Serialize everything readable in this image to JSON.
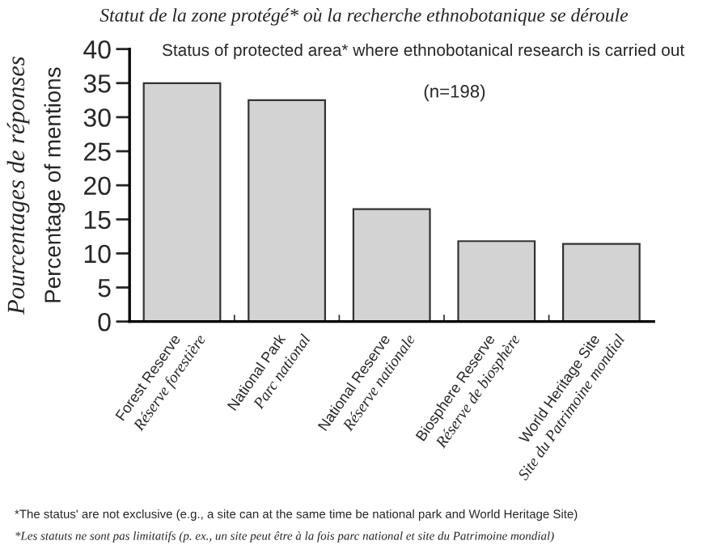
{
  "chart_data": {
    "type": "bar",
    "title": "Statut de la zone protégé* où la recherche ethnobotanique se déroule",
    "subtitle": "Status of protected area* where ethnobotanical research is carried out",
    "ylabel": "Pourcentages de réponses\nPercentage of mentions",
    "categories": [
      "Forest Reserve\nRéserve forestière",
      "National Park\nParc national",
      "National Reserve\nRéserve nationale",
      "Biosphere Reserve\nRéserve de biosphère",
      "World Heritage Site\nSite du Patrimoine mondial"
    ],
    "values": [
      35,
      32.5,
      16.5,
      11.8,
      11.4
    ],
    "color": "#d3d3d3",
    "ylim": [
      0,
      40
    ],
    "yticks": [
      0,
      5,
      10,
      15,
      20,
      25,
      30,
      35,
      40
    ],
    "grid": false,
    "legend": false,
    "annotations": [
      "(n=198)",
      "*The status' are not exclusive (e.g., a site can at the same time be national park and World Heritage Site)",
      "*Les statuts ne sont pas limitatifs (p. ex., un site peut être à la fois parc national et site du Patrimoine mondial)"
    ]
  }
}
